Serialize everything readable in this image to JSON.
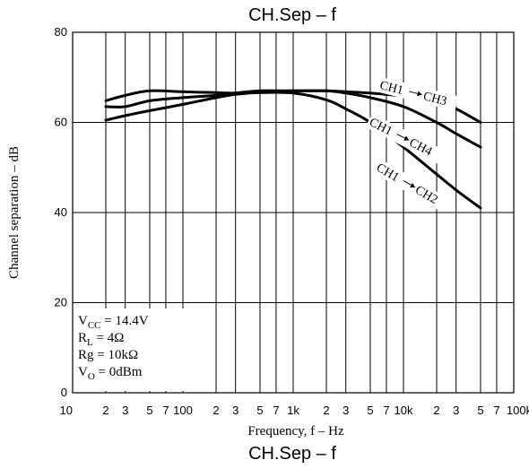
{
  "chart_data": {
    "type": "line",
    "title": "CH.Sep – f",
    "bottom_title": "CH.Sep – f",
    "xlabel": "Frequency, f – Hz",
    "ylabel": "Channel separation – dB",
    "x_scale": "log",
    "xlim": [
      10,
      100000
    ],
    "ylim": [
      0,
      80
    ],
    "grid": true,
    "y_ticks": [
      0,
      20,
      40,
      60,
      80
    ],
    "y_tick_labels": [
      "0",
      "20",
      "40",
      "60",
      "80"
    ],
    "x_major_ticks": [
      10,
      100,
      1000,
      10000,
      100000
    ],
    "x_major_labels": [
      "10",
      "100",
      "1k",
      "10k",
      "100k"
    ],
    "x_minor_ticks": [
      20,
      30,
      50,
      70,
      200,
      300,
      500,
      700,
      2000,
      3000,
      5000,
      7000,
      20000,
      30000,
      50000,
      70000
    ],
    "x_minor_labels": [
      "2",
      "3",
      "5",
      "7",
      "2",
      "3",
      "5",
      "7",
      "2",
      "3",
      "5",
      "7",
      "2",
      "3",
      "5",
      "7"
    ],
    "series": [
      {
        "name": "CH1→CH3",
        "label_from": "CH1",
        "label_to": "CH3",
        "points": [
          [
            20,
            63.5
          ],
          [
            30,
            63.5
          ],
          [
            50,
            64.8
          ],
          [
            100,
            65.5
          ],
          [
            200,
            66.0
          ],
          [
            300,
            66.5
          ],
          [
            500,
            67.0
          ],
          [
            1000,
            67.0
          ],
          [
            2000,
            67.0
          ],
          [
            3000,
            66.8
          ],
          [
            5000,
            66.5
          ],
          [
            10000,
            65.8
          ],
          [
            20000,
            64.5
          ],
          [
            30000,
            63.0
          ],
          [
            50000,
            60.0
          ]
        ]
      },
      {
        "name": "CH1→CH4",
        "label_from": "CH1",
        "label_to": "CH4",
        "points": [
          [
            20,
            64.8
          ],
          [
            30,
            66.0
          ],
          [
            50,
            67.0
          ],
          [
            100,
            66.8
          ],
          [
            200,
            66.6
          ],
          [
            300,
            66.5
          ],
          [
            500,
            66.8
          ],
          [
            1000,
            67.0
          ],
          [
            2000,
            67.0
          ],
          [
            3000,
            66.5
          ],
          [
            5000,
            65.5
          ],
          [
            10000,
            63.5
          ],
          [
            20000,
            60.0
          ],
          [
            30000,
            57.5
          ],
          [
            50000,
            54.5
          ]
        ]
      },
      {
        "name": "CH1→CH2",
        "label_from": "CH1",
        "label_to": "CH2",
        "points": [
          [
            20,
            60.5
          ],
          [
            30,
            61.5
          ],
          [
            50,
            62.6
          ],
          [
            100,
            64.0
          ],
          [
            200,
            65.5
          ],
          [
            300,
            66.2
          ],
          [
            500,
            66.6
          ],
          [
            1000,
            66.5
          ],
          [
            2000,
            65.0
          ],
          [
            3000,
            63.0
          ],
          [
            5000,
            60.0
          ],
          [
            10000,
            54.5
          ],
          [
            20000,
            48.5
          ],
          [
            30000,
            45.0
          ],
          [
            50000,
            41.0
          ]
        ]
      }
    ],
    "conditions": [
      {
        "main": "V",
        "sub": "CC",
        "rest": " = 14.4V"
      },
      {
        "main": "R",
        "sub": "L",
        "rest": " = 4Ω"
      },
      {
        "main": "Rg",
        "sub": "",
        "rest": " = 10kΩ"
      },
      {
        "main": "V",
        "sub": "O",
        "rest": " = 0dBm"
      }
    ]
  }
}
